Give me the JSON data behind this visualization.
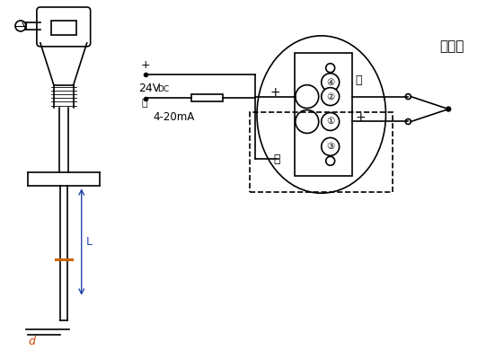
{
  "bg_color": "#ffffff",
  "line_color": "#000000",
  "dim_color_blue": "#2244aa",
  "dim_color_orange": "#cc6600",
  "title_text": "热电偶",
  "label_L": "L",
  "label_d": "d",
  "label_24v": "24V",
  "label_dc": "DC",
  "label_4_20": "4-20mA",
  "plus_sign": "+",
  "minus_sign": "-",
  "terminal_1": "①",
  "terminal_2": "②",
  "terminal_3": "③",
  "terminal_4": "④"
}
